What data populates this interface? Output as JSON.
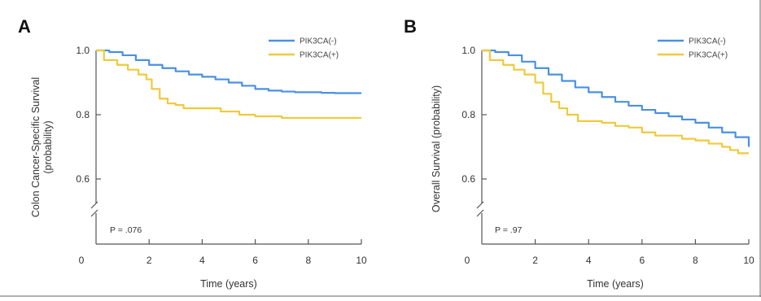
{
  "chart_data": [
    {
      "panel": "A",
      "type": "line",
      "step": true,
      "xlabel": "Time (years)",
      "ylabel": "Colon Cancer-Specific Survival (probability)",
      "xlim": [
        0,
        10
      ],
      "ylim": [
        0.5,
        1.0
      ],
      "xticks": [
        0,
        2,
        4,
        6,
        8,
        10
      ],
      "yticks": [
        0.6,
        0.8,
        1.0
      ],
      "ytick_labels": [
        "0.6",
        "0.8",
        "1.0"
      ],
      "axis_break": true,
      "legend_position": "top-right",
      "annotation": "P = .076",
      "series": [
        {
          "name": "PIK3CA(-)",
          "color": "#4a90e2",
          "x": [
            0,
            0.5,
            1.0,
            1.5,
            2.0,
            2.5,
            3.0,
            3.5,
            4.0,
            4.5,
            5.0,
            5.5,
            6.0,
            6.5,
            7.0,
            7.5,
            8.0,
            8.5,
            9.0,
            9.5,
            10.0
          ],
          "y": [
            1.0,
            0.995,
            0.985,
            0.97,
            0.955,
            0.945,
            0.935,
            0.925,
            0.918,
            0.91,
            0.9,
            0.89,
            0.88,
            0.875,
            0.872,
            0.87,
            0.87,
            0.868,
            0.867,
            0.867,
            0.867
          ]
        },
        {
          "name": "PIK3CA(+)",
          "color": "#f0c93a",
          "x": [
            0,
            0.3,
            0.8,
            1.2,
            1.6,
            1.9,
            2.1,
            2.4,
            2.7,
            3.0,
            3.3,
            4.0,
            4.7,
            5.4,
            6.0,
            7.0,
            8.0,
            9.0,
            10.0
          ],
          "y": [
            1.0,
            0.97,
            0.955,
            0.94,
            0.925,
            0.91,
            0.88,
            0.85,
            0.835,
            0.83,
            0.82,
            0.82,
            0.81,
            0.8,
            0.795,
            0.79,
            0.79,
            0.79,
            0.79
          ]
        }
      ]
    },
    {
      "panel": "B",
      "type": "line",
      "step": true,
      "xlabel": "Time (years)",
      "ylabel": "Overall Survival (probability)",
      "xlim": [
        0,
        10
      ],
      "ylim": [
        0.5,
        1.0
      ],
      "xticks": [
        0,
        2,
        4,
        6,
        8,
        10
      ],
      "yticks": [
        0.6,
        0.8,
        1.0
      ],
      "ytick_labels": [
        "0.6",
        "0.8",
        "1.0"
      ],
      "axis_break": true,
      "legend_position": "top-right",
      "annotation": "P = .97",
      "series": [
        {
          "name": "PIK3CA(-)",
          "color": "#4a90e2",
          "x": [
            0,
            0.5,
            1.0,
            1.5,
            2.0,
            2.5,
            3.0,
            3.5,
            4.0,
            4.5,
            5.0,
            5.5,
            6.0,
            6.5,
            7.0,
            7.5,
            8.0,
            8.5,
            9.0,
            9.5,
            10.0
          ],
          "y": [
            1.0,
            0.995,
            0.985,
            0.965,
            0.945,
            0.925,
            0.905,
            0.885,
            0.87,
            0.855,
            0.84,
            0.828,
            0.815,
            0.805,
            0.795,
            0.785,
            0.775,
            0.76,
            0.745,
            0.73,
            0.7
          ]
        },
        {
          "name": "PIK3CA(+)",
          "color": "#f0c93a",
          "x": [
            0,
            0.3,
            0.8,
            1.2,
            1.6,
            2.0,
            2.3,
            2.6,
            2.9,
            3.2,
            3.6,
            4.0,
            4.5,
            5.0,
            5.5,
            6.0,
            6.5,
            7.0,
            7.5,
            8.0,
            8.5,
            9.0,
            9.3,
            9.6,
            10.0
          ],
          "y": [
            1.0,
            0.97,
            0.955,
            0.94,
            0.925,
            0.9,
            0.865,
            0.84,
            0.82,
            0.8,
            0.78,
            0.78,
            0.775,
            0.765,
            0.76,
            0.745,
            0.735,
            0.735,
            0.725,
            0.72,
            0.71,
            0.7,
            0.69,
            0.68,
            0.68
          ]
        }
      ]
    }
  ]
}
